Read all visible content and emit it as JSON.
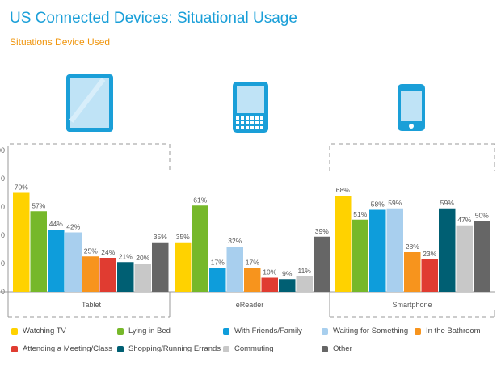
{
  "title": "US Connected Devices: Situational Usage",
  "subtitle": "Situations Device Used",
  "chart_data": {
    "type": "bar",
    "title": "US Connected Devices: Situational Usage",
    "subtitle": "Situations Device Used",
    "categories": [
      "Tablet",
      "eReader",
      "Smartphone"
    ],
    "ylim": [
      0,
      100
    ],
    "yticks": [
      "00",
      "0",
      "0",
      "0",
      "0",
      "0"
    ],
    "grid": false,
    "legend_position": "bottom",
    "series": [
      {
        "name": "Watching TV",
        "color": "#ffd200",
        "values": [
          70,
          35,
          68
        ],
        "labels": [
          "70%",
          "35%",
          "68%"
        ]
      },
      {
        "name": "Lying in Bed",
        "color": "#76b82a",
        "values": [
          57,
          61,
          51
        ],
        "labels": [
          "57%",
          "61%",
          "51%"
        ]
      },
      {
        "name": "With Friends/Family",
        "color": "#0e9ddb",
        "values": [
          44,
          17,
          58
        ],
        "labels": [
          "44%",
          "17%",
          "58%"
        ]
      },
      {
        "name": "Waiting for Something",
        "color": "#a8cfee",
        "values": [
          42,
          32,
          59
        ],
        "labels": [
          "42%",
          "32%",
          "59%"
        ]
      },
      {
        "name": "In the Bathroom",
        "color": "#f7941d",
        "values": [
          25,
          17,
          28
        ],
        "labels": [
          "25%",
          "17%",
          "28%"
        ]
      },
      {
        "name": "Attending a Meeting/Class",
        "color": "#e03c31",
        "values": [
          24,
          10,
          23
        ],
        "labels": [
          "24%",
          "10%",
          "23%"
        ]
      },
      {
        "name": "Shopping/Running Errands",
        "color": "#005f73",
        "values": [
          21,
          9,
          59
        ],
        "labels": [
          "21%",
          "9%",
          "59%"
        ]
      },
      {
        "name": "Commuting",
        "color": "#c8c8c8",
        "values": [
          20,
          11,
          47
        ],
        "labels": [
          "20%",
          "11%",
          "47%"
        ]
      },
      {
        "name": "Other",
        "color": "#666666",
        "values": [
          35,
          39,
          50
        ],
        "labels": [
          "35%",
          "39%",
          "50%"
        ]
      }
    ],
    "device_icons": [
      "tablet-icon",
      "ereader-icon",
      "smartphone-icon"
    ],
    "icon_color": "#1a9fd8"
  }
}
